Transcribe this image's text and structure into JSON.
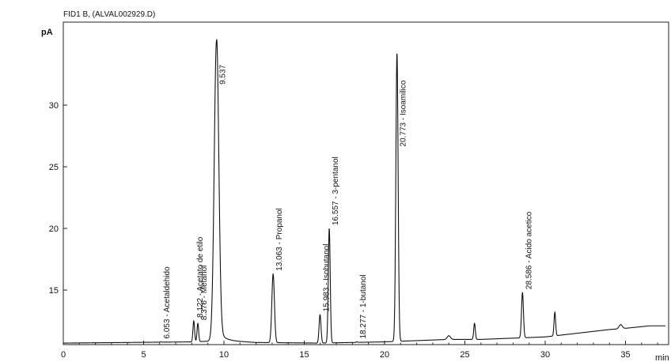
{
  "header": "FID1 B, (ALVAL002929.D)",
  "chart_data": {
    "type": "line",
    "ylabel": "pA",
    "xlabel": "min",
    "xlim": [
      0,
      37.5
    ],
    "ylim": [
      10.2,
      35.2
    ],
    "x_ticks": [
      0,
      5,
      10,
      15,
      20,
      25,
      30,
      35
    ],
    "y_ticks": [
      15,
      20,
      25,
      30
    ],
    "grid": false,
    "baseline": [
      [
        0,
        10.7
      ],
      [
        8,
        10.8
      ],
      [
        9,
        10.85
      ],
      [
        10,
        10.9
      ],
      [
        12,
        10.75
      ],
      [
        16,
        10.7
      ],
      [
        20,
        10.8
      ],
      [
        22,
        10.9
      ],
      [
        24,
        11.0
      ],
      [
        26,
        11.0
      ],
      [
        28,
        11.1
      ],
      [
        30,
        11.2
      ],
      [
        32,
        11.5
      ],
      [
        34,
        11.8
      ],
      [
        35,
        11.9
      ],
      [
        36.5,
        12.1
      ],
      [
        37.5,
        12.1
      ]
    ],
    "peaks": [
      {
        "rt": 6.053,
        "height": 10.8,
        "width": 0.05,
        "label": "6.053 - Acetaldehido"
      },
      {
        "rt": 8.122,
        "height": 12.5,
        "width": 0.05,
        "label": "8.122 - Acetato de etilo"
      },
      {
        "rt": 8.376,
        "height": 12.3,
        "width": 0.05,
        "label": "8.376 - Metanol"
      },
      {
        "rt": 9.537,
        "height": 35.2,
        "width": 0.14,
        "label": "9.537"
      },
      {
        "rt": 13.063,
        "height": 16.3,
        "width": 0.08,
        "label": "13.063 - Propanol"
      },
      {
        "rt": 15.983,
        "height": 13.0,
        "width": 0.06,
        "label": "15.983 - Isobutanol"
      },
      {
        "rt": 16.557,
        "height": 20.0,
        "width": 0.06,
        "label": "16.557 - 3-pentanol"
      },
      {
        "rt": 18.277,
        "height": 10.8,
        "width": 0.05,
        "label": "18.277 - 1-butanol"
      },
      {
        "rt": 20.773,
        "height": 34.2,
        "width": 0.07,
        "label": "20.773 - Isoamilico"
      },
      {
        "rt": 28.586,
        "height": 14.8,
        "width": 0.06,
        "label": "28.586 - Acido acetico"
      },
      {
        "rt": 25.6,
        "height": 12.3,
        "width": 0.05,
        "label": ""
      },
      {
        "rt": 30.6,
        "height": 13.2,
        "width": 0.05,
        "label": ""
      },
      {
        "rt": 24.0,
        "height": 11.3,
        "width": 0.1,
        "label": ""
      },
      {
        "rt": 34.7,
        "height": 12.2,
        "width": 0.1,
        "label": ""
      }
    ]
  }
}
